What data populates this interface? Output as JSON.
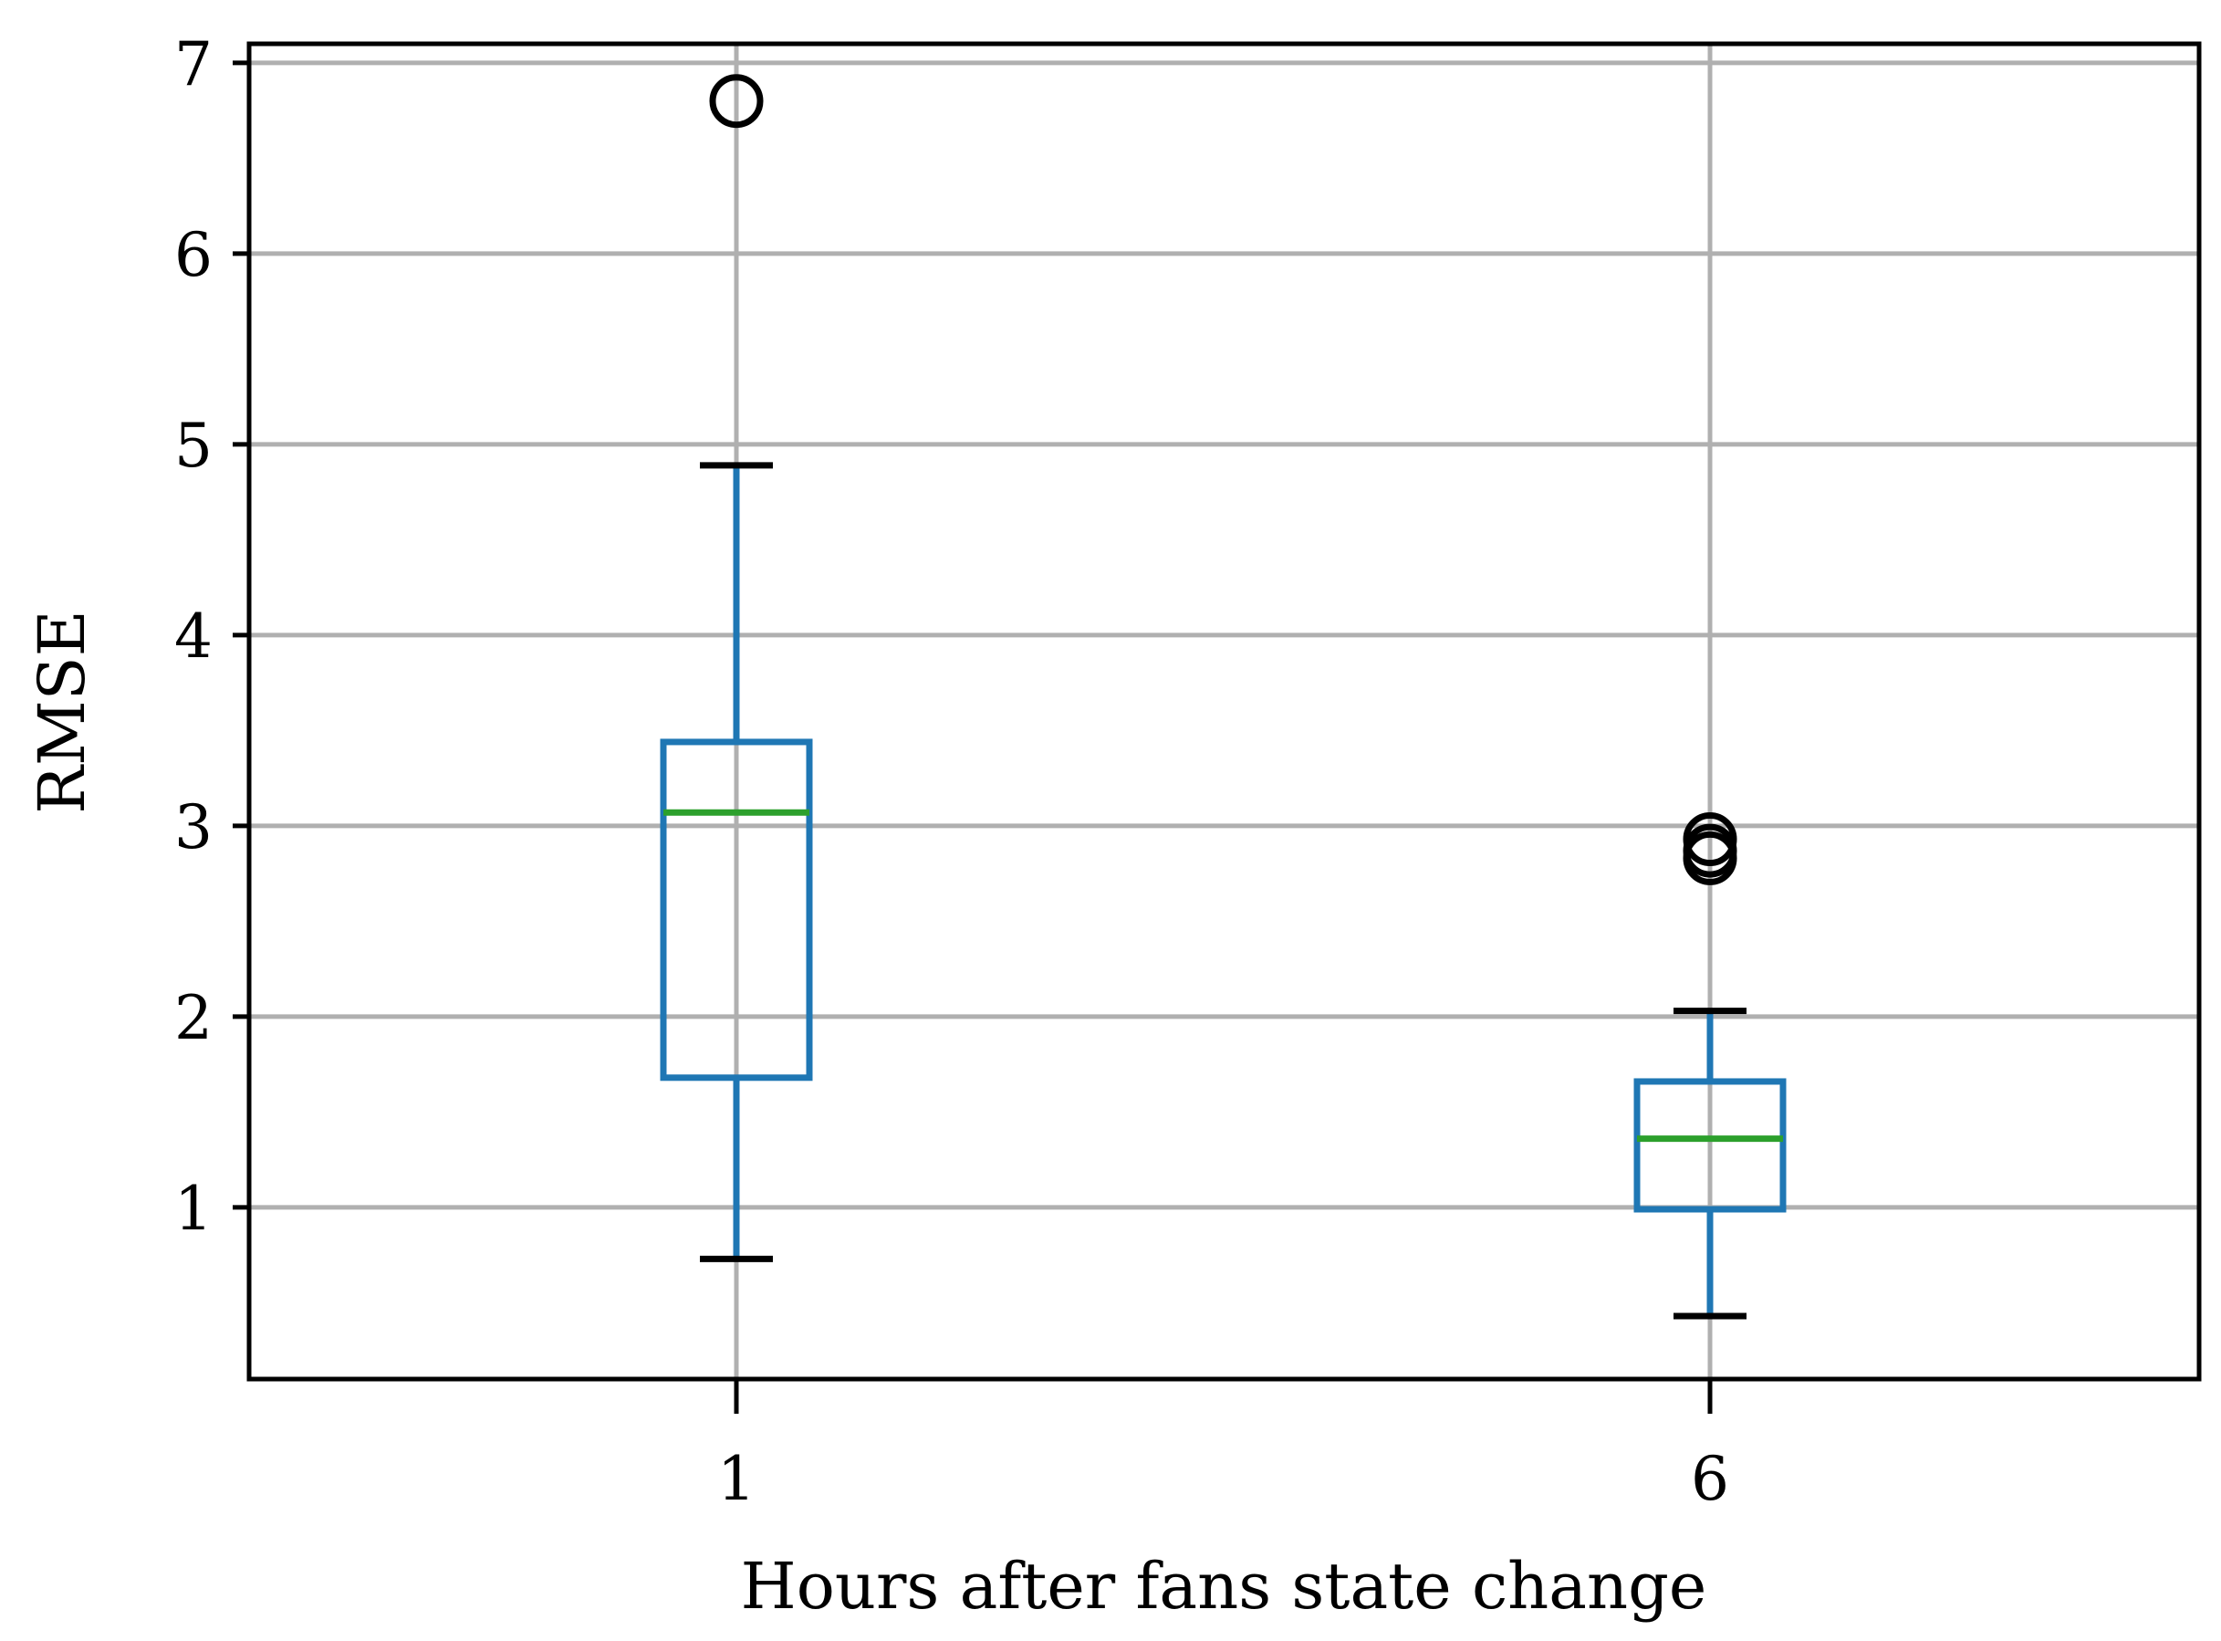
{
  "chart_data": {
    "type": "box",
    "title": "",
    "xlabel": "Hours after fans state change",
    "ylabel": "RMSE",
    "categories": [
      "1",
      "6"
    ],
    "boxes": [
      {
        "category": "1",
        "whisker_low": 0.73,
        "q1": 1.68,
        "median": 3.07,
        "q3": 3.44,
        "whisker_high": 4.89,
        "outliers": [
          6.8
        ]
      },
      {
        "category": "6",
        "whisker_low": 0.43,
        "q1": 0.99,
        "median": 1.36,
        "q3": 1.66,
        "whisker_high": 2.03,
        "outliers": [
          2.83,
          2.87,
          2.93
        ]
      }
    ],
    "ylim": [
      0.1,
      7.1
    ],
    "yticks": [
      1,
      2,
      3,
      4,
      5,
      6,
      7
    ],
    "ytick_labels": [
      "1",
      "2",
      "3",
      "4",
      "5",
      "6",
      "7"
    ],
    "grid": true,
    "colors": {
      "box": "#1f77b4",
      "median": "#2ca02c",
      "caps": "#000000",
      "outliers": "#000000",
      "grid": "#b0b0b0",
      "frame": "#000000"
    }
  }
}
